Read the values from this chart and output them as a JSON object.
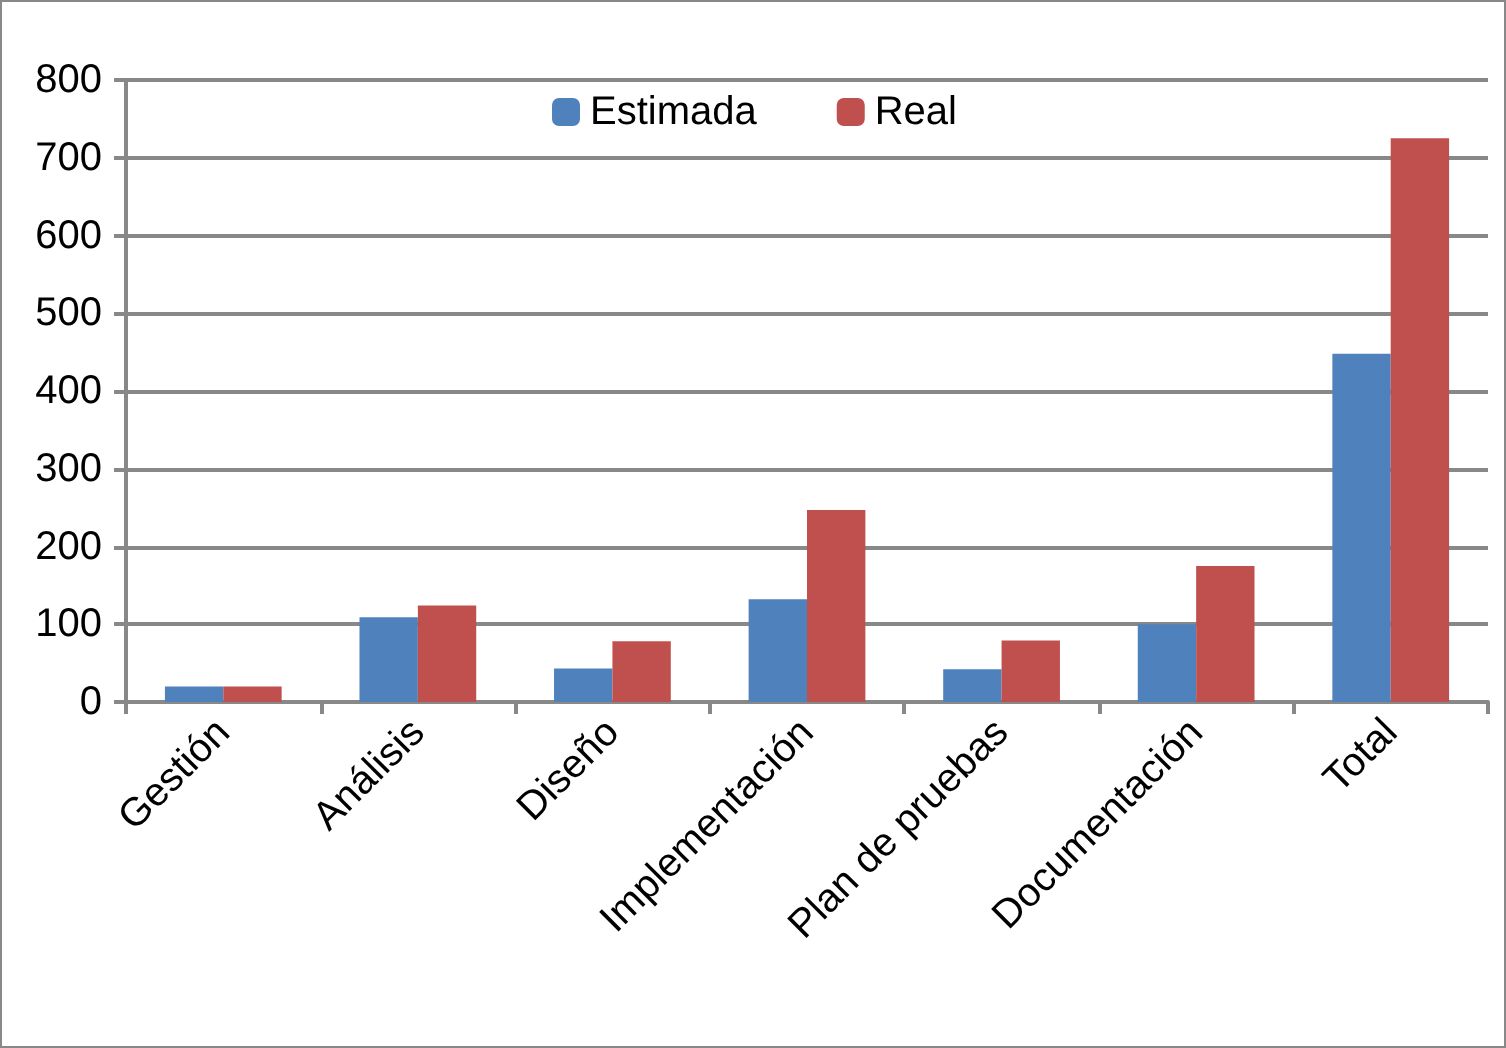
{
  "chart_data": {
    "type": "bar",
    "categories": [
      "Gestión",
      "Análisis",
      "Diseño",
      "Implementación",
      "Plan de pruebas",
      "Documentación",
      "Total"
    ],
    "series": [
      {
        "name": "Estimada",
        "color": "#4f81bd",
        "values": [
          20,
          109,
          43,
          132,
          42,
          100,
          448
        ]
      },
      {
        "name": "Real",
        "color": "#c0504d",
        "values": [
          20,
          124,
          78,
          247,
          79,
          175,
          725
        ]
      }
    ],
    "ylim": [
      0,
      800
    ],
    "yticks": [
      0,
      100,
      200,
      300,
      400,
      500,
      600,
      700,
      800
    ],
    "grid": "y",
    "legend": "top"
  }
}
